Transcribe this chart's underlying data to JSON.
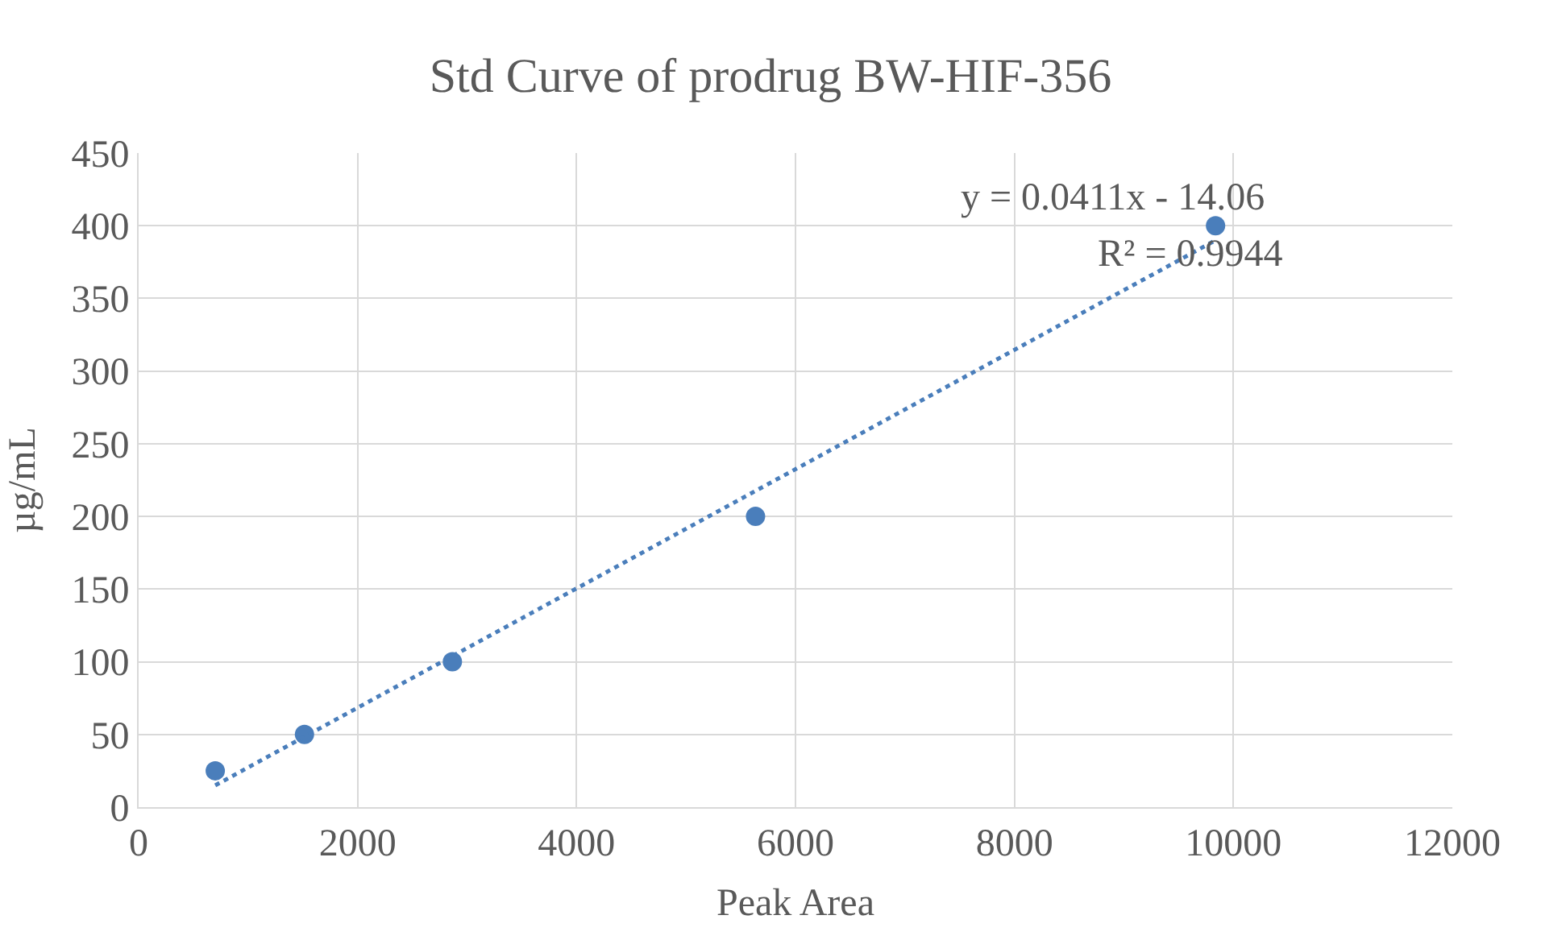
{
  "chart_data": {
    "type": "scatter",
    "title": "Std Curve of prodrug BW-HIF-356",
    "xlabel": "Peak Area",
    "ylabel": "µg/mL",
    "x": [
      700,
      1515,
      2866,
      5635,
      9837
    ],
    "series": [
      {
        "color": "#4a7ebb",
        "values": [
          25,
          50,
          100,
          200,
          400
        ],
        "marker": "circle"
      },
      {
        "type": "line",
        "color": "#4a7ebb",
        "x": [
          700,
          9837
        ],
        "values": [
          15,
          390
        ],
        "line_style": "dotted",
        "marker": "none"
      }
    ],
    "annotations": [
      "y = 0.0411x - 14.06",
      "R² = 0.9944"
    ],
    "xlim": [
      0,
      12000
    ],
    "xticks": [
      0,
      2000,
      4000,
      6000,
      8000,
      10000,
      12000
    ],
    "ylim": [
      0,
      450
    ],
    "yticks": [
      0,
      50,
      100,
      150,
      200,
      250,
      300,
      350,
      400,
      450
    ],
    "grid": true
  }
}
